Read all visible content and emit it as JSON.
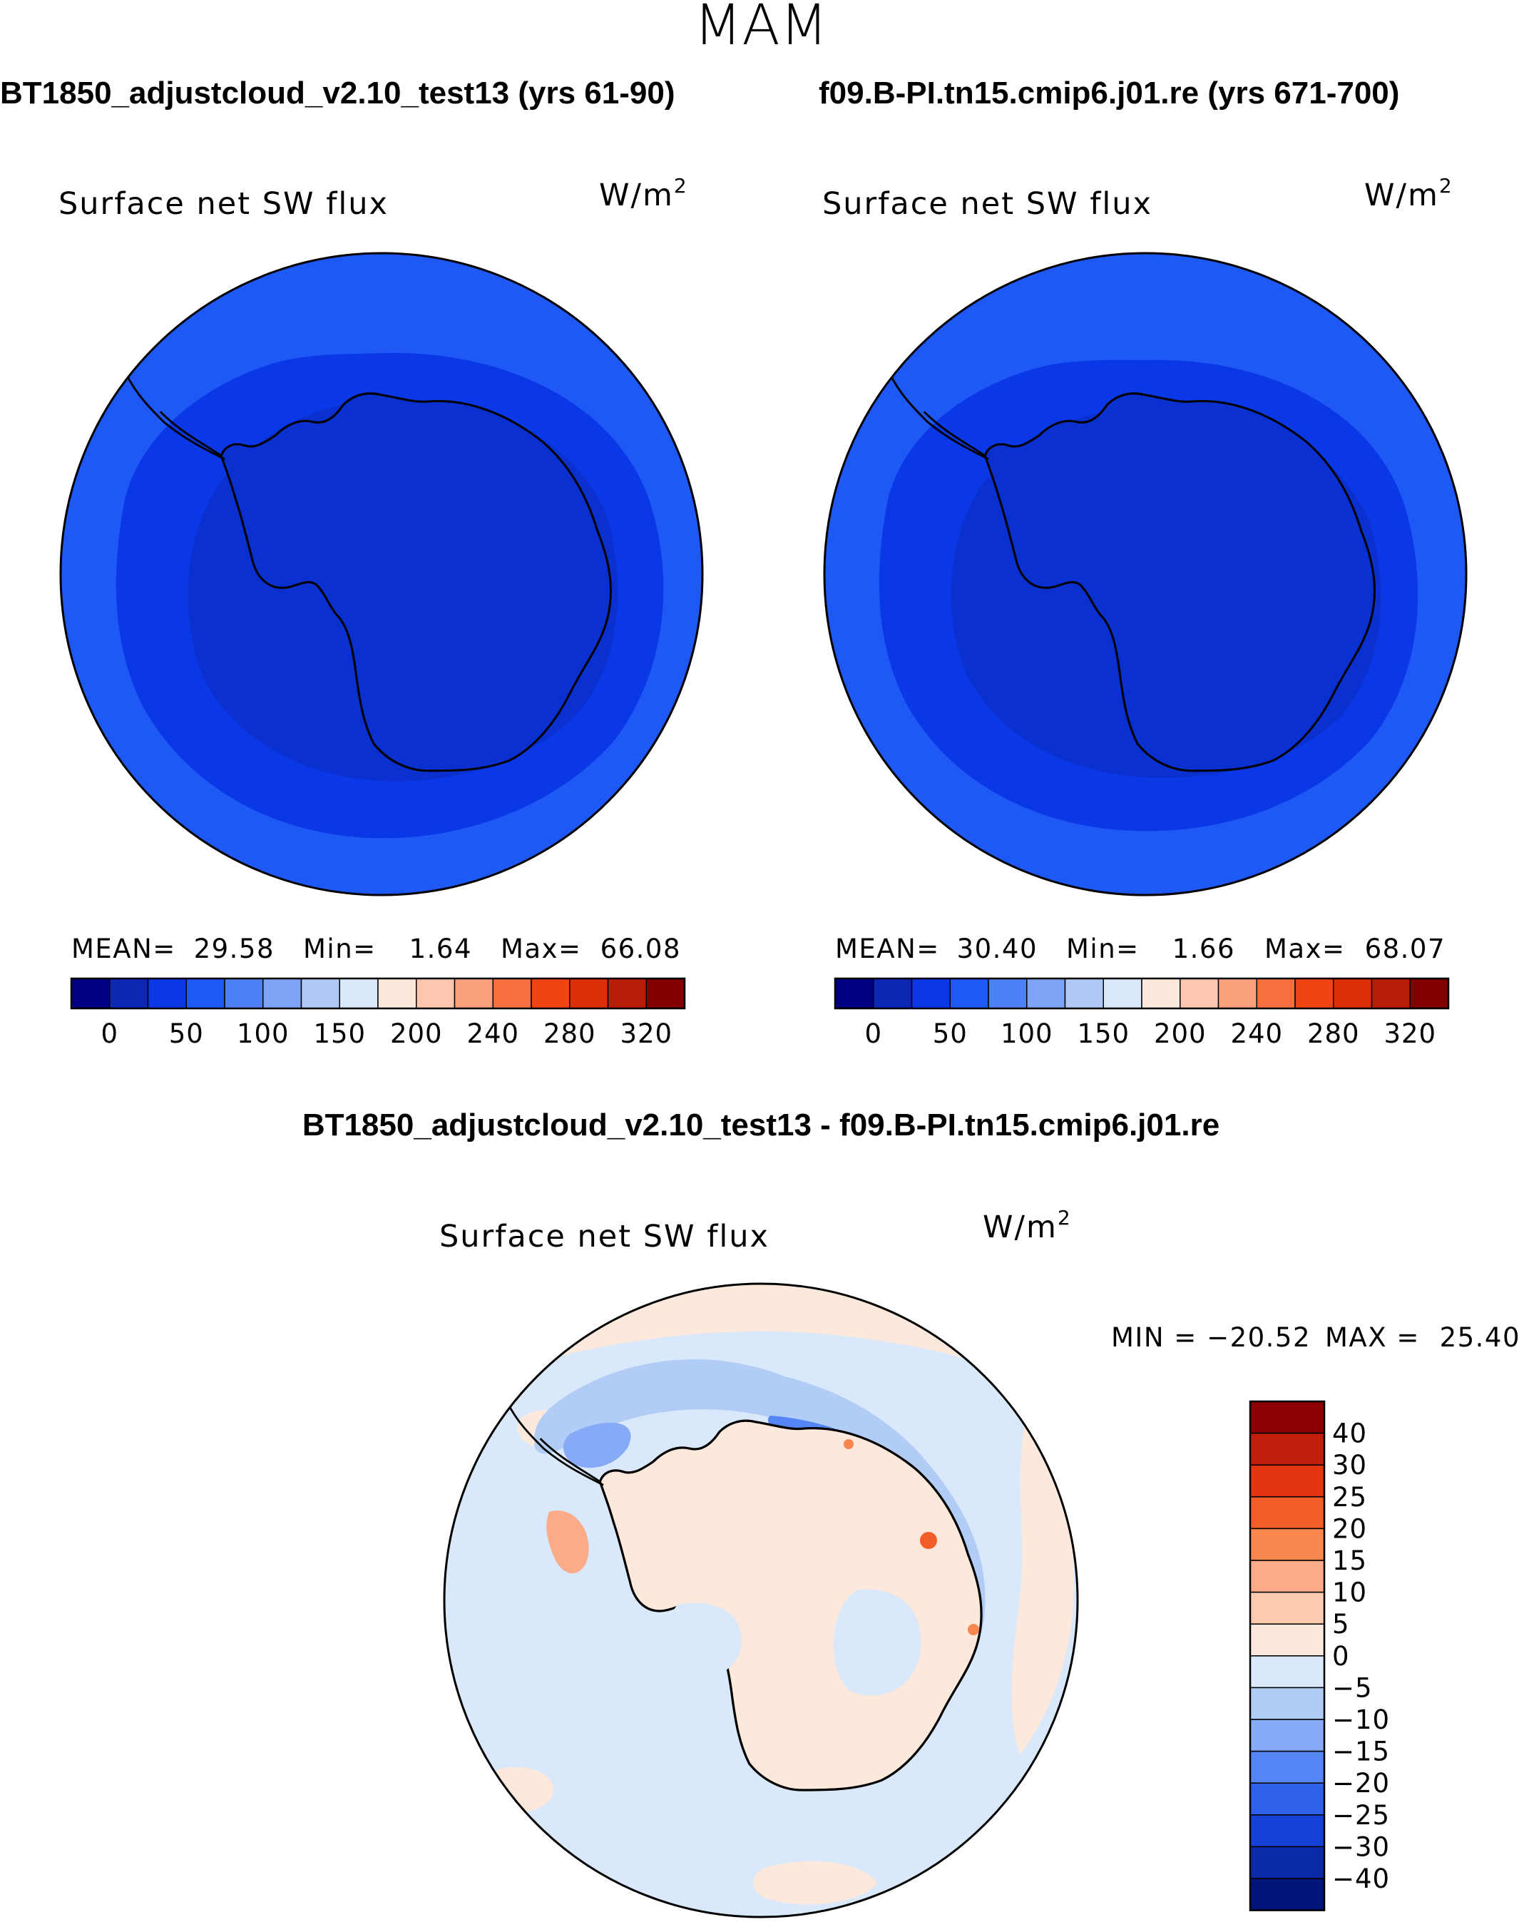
{
  "figure": {
    "season": "MAM",
    "top_left_title": "BT1850_adjustcloud_v2.10_test13 (yrs 61-90)",
    "top_right_title": "f09.B-PI.tn15.cmip6.j01.re (yrs 671-700)",
    "diff_title": "BT1850_adjustcloud_v2.10_test13 - f09.B-PI.tn15.cmip6.j01.re"
  },
  "chart_data": [
    {
      "type": "heatmap",
      "projection": "south polar stereographic",
      "title": "Surface net SW flux",
      "units": "W/m",
      "units_sup": "2",
      "stats": {
        "mean_label": "MEAN=",
        "mean": "29.58",
        "min_label": "Min=",
        "min": "1.64",
        "max_label": "Max=",
        "max": "66.08"
      },
      "colorbar": {
        "levels": [
          "0",
          "50",
          "100",
          "150",
          "200",
          "240",
          "280",
          "320"
        ],
        "colors": [
          "#000080",
          "#0d27b5",
          "#0a38e6",
          "#1f59f5",
          "#4d7ff7",
          "#7fa3f7",
          "#b0c8f5",
          "#d9e8fa",
          "#fde9dc",
          "#fcc7ae",
          "#fba07c",
          "#f8703f",
          "#f04414",
          "#dc2f05",
          "#b81e07",
          "#800000"
        ]
      }
    },
    {
      "type": "heatmap",
      "projection": "south polar stereographic",
      "title": "Surface net SW flux",
      "units": "W/m",
      "units_sup": "2",
      "stats": {
        "mean_label": "MEAN=",
        "mean": "30.40",
        "min_label": "Min=",
        "min": "1.66",
        "max_label": "Max=",
        "max": "68.07"
      },
      "colorbar": {
        "levels": [
          "0",
          "50",
          "100",
          "150",
          "200",
          "240",
          "280",
          "320"
        ],
        "colors": [
          "#000080",
          "#0d27b5",
          "#0a38e6",
          "#1f59f5",
          "#4d7ff7",
          "#7fa3f7",
          "#b0c8f5",
          "#d9e8fa",
          "#fde9dc",
          "#fcc7ae",
          "#fba07c",
          "#f8703f",
          "#f04414",
          "#dc2f05",
          "#b81e07",
          "#800000"
        ]
      }
    },
    {
      "type": "heatmap",
      "projection": "south polar stereographic",
      "title": "Surface net SW flux",
      "units": "W/m",
      "units_sup": "2",
      "stats": {
        "min_label": "MIN =",
        "min": "−20.52",
        "max_label": "MAX =",
        "max": "25.40"
      },
      "colorbar": {
        "levels": [
          "40",
          "30",
          "25",
          "20",
          "15",
          "10",
          "5",
          "0",
          "−5",
          "−10",
          "−15",
          "−20",
          "−25",
          "−30",
          "−40"
        ],
        "colors_top_to_bottom": [
          "#8b0000",
          "#c0200b",
          "#e33510",
          "#f25d2a",
          "#f8864f",
          "#fbab87",
          "#fdcbb0",
          "#fde8dc",
          "#d9e8fa",
          "#b2cdf5",
          "#86aaf6",
          "#5686f5",
          "#2f62ea",
          "#1541d6",
          "#0a2aa8",
          "#02137a"
        ]
      }
    }
  ],
  "colors": {
    "ocean_mean": "#1f59f5",
    "antarctic_mean": "#0a38e6",
    "diff_background": "#d9e8fa",
    "diff_land": "#fde8dc"
  }
}
